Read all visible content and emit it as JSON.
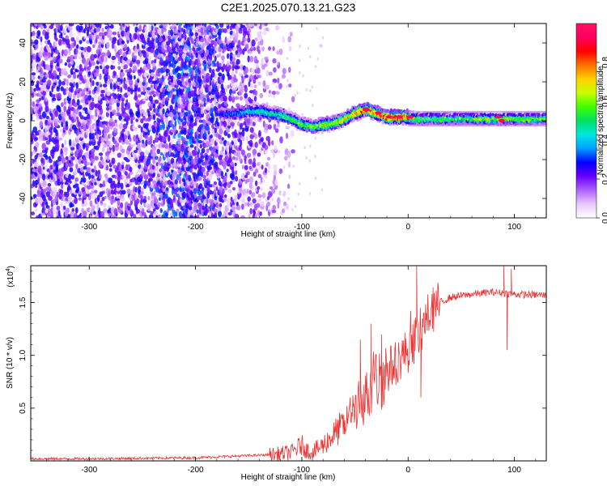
{
  "figure": {
    "title": "C2E1.2025.070.13.21.G23"
  },
  "colorbar": {
    "label": "Normalized spectral amplitude",
    "ticks": [
      "0.0",
      "0.2",
      "0.4",
      "0.6",
      "0.8"
    ],
    "tick_values": [
      0.0,
      0.2,
      0.4,
      0.6,
      0.8
    ],
    "range": [
      0,
      1
    ],
    "colormap": [
      "#ffffff",
      "#e8c8ff",
      "#b060ff",
      "#6600ff",
      "#0000ff",
      "#00a0ff",
      "#00e8e0",
      "#00e060",
      "#40ff00",
      "#c8ff00",
      "#ffd000",
      "#ff7000",
      "#ff0000",
      "#ff0060",
      "#ff1060"
    ]
  },
  "chart_data": [
    {
      "type": "heatmap",
      "title": "",
      "xlabel": "Height of straight line (km)",
      "ylabel": "Frequency (Hz)",
      "xlim": [
        -355,
        130
      ],
      "ylim": [
        -50,
        50
      ],
      "xticks": [
        "-300",
        "-200",
        "-100",
        "0",
        "100"
      ],
      "xtick_values": [
        -300,
        -200,
        -100,
        0,
        100
      ],
      "yticks": [
        "-40",
        "-20",
        "0",
        "20",
        "40"
      ],
      "ytick_values": [
        -40,
        -20,
        0,
        20,
        40
      ],
      "noise_region_x": [
        -355,
        -140
      ],
      "noise_density_ramp": [
        [
          -355,
          0.55
        ],
        [
          -260,
          0.5
        ],
        [
          -210,
          0.85
        ],
        [
          -175,
          0.6
        ],
        [
          -145,
          0.35
        ],
        [
          -120,
          0.1
        ]
      ],
      "signal_ridge": {
        "x": [
          -178,
          -170,
          -160,
          -150,
          -140,
          -130,
          -120,
          -110,
          -100,
          -90,
          -80,
          -70,
          -60,
          -50,
          -45,
          -40,
          -35,
          -30,
          -20,
          -10,
          0,
          10,
          30,
          60,
          90,
          128
        ],
        "frequency_hz": [
          4,
          3,
          4,
          5,
          5,
          4,
          3,
          1,
          -2,
          -3,
          -2,
          -1,
          1,
          4,
          5,
          6,
          5,
          4,
          2,
          2,
          2,
          1,
          1,
          1,
          1,
          1
        ],
        "amplitude": [
          0.3,
          0.35,
          0.4,
          0.45,
          0.5,
          0.5,
          0.55,
          0.6,
          0.6,
          0.65,
          0.7,
          0.7,
          0.75,
          0.85,
          0.9,
          0.95,
          0.9,
          0.9,
          0.95,
          0.95,
          0.95,
          0.6,
          0.6,
          0.65,
          0.7,
          0.6
        ]
      },
      "band_region_x": [
        0,
        130
      ],
      "band_half_width_hz": 4
    },
    {
      "type": "line",
      "title": "",
      "xlabel": "Height of straight line (km)",
      "ylabel": "SNR (10 * v/v)",
      "y_multiplier": "(x10",
      "y_multiplier_exp": "4",
      "y_multiplier_close": ")",
      "xlim": [
        -355,
        130
      ],
      "ylim": [
        0,
        1.85
      ],
      "xticks": [
        "-300",
        "-200",
        "-100",
        "0",
        "100"
      ],
      "xtick_values": [
        -300,
        -200,
        -100,
        0,
        100
      ],
      "yticks": [
        "0.5",
        "1.0",
        "1.5"
      ],
      "ytick_values": [
        0.5,
        1.0,
        1.5
      ],
      "color": "#ee3333",
      "series": [
        {
          "x": [
            -355,
            -300,
            -250,
            -200,
            -175,
            -150,
            -125,
            -110,
            -100,
            -95,
            -90,
            -80,
            -70,
            -60,
            -50,
            -40,
            -30,
            -20,
            -10,
            0,
            10,
            20,
            30,
            40,
            60,
            80,
            100,
            130
          ],
          "values": [
            0.02,
            0.02,
            0.025,
            0.03,
            0.04,
            0.05,
            0.06,
            0.08,
            0.15,
            0.1,
            0.08,
            0.15,
            0.25,
            0.35,
            0.5,
            0.6,
            0.75,
            0.85,
            0.95,
            1.05,
            1.2,
            1.4,
            1.5,
            1.55,
            1.58,
            1.6,
            1.58,
            1.57
          ],
          "spikes": [
            {
              "x": -45,
              "y": 1.15
            },
            {
              "x": -35,
              "y": 1.3
            },
            {
              "x": -25,
              "y": 1.2
            },
            {
              "x": 8,
              "y": 1.85
            },
            {
              "x": 12,
              "y": 0.6
            },
            {
              "x": 90,
              "y": 1.85
            },
            {
              "x": 93,
              "y": 1.05
            },
            {
              "x": 97,
              "y": 1.82
            }
          ]
        }
      ]
    }
  ]
}
